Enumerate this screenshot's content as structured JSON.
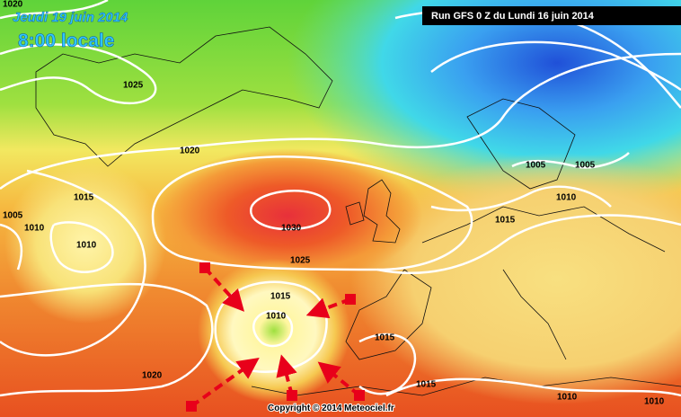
{
  "header": {
    "date": "Jeudi 19 juin 2014",
    "time": "8:00 locale"
  },
  "run_label": "Run GFS 0 Z du Lundi 16 juin 2014",
  "copyright": "Copyright © 2014 Meteociel.fr",
  "isobar_labels": [
    1020,
    1025,
    1020,
    1015,
    1005,
    1010,
    1010,
    1030,
    1025,
    1015,
    1010,
    1015,
    1020,
    1015,
    1010,
    1010,
    1005,
    1005,
    1010,
    1015
  ]
}
